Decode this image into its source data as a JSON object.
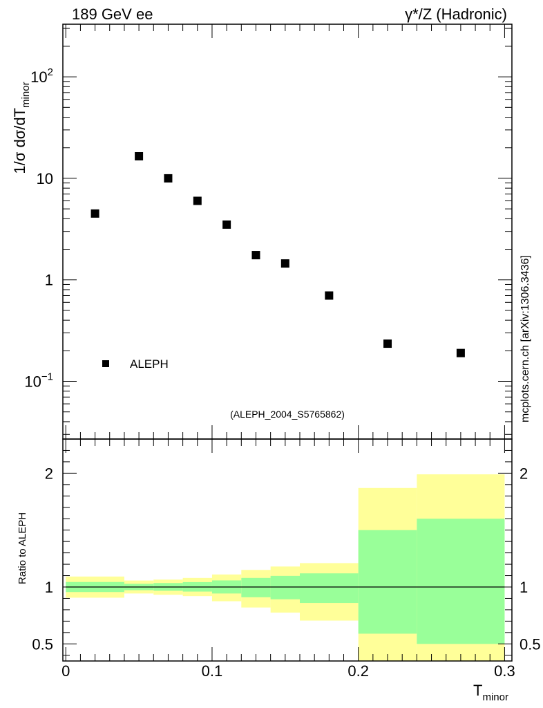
{
  "header": {
    "left": "189 GeV ee",
    "right": "γ*/Z (Hadronic)"
  },
  "side_label": "mcplots.cern.ch [arXiv:1306.3436]",
  "analysis_tag": "(ALEPH_2004_S5765862)",
  "colors": {
    "band_outer": "#ffff99",
    "band_inner": "#99ff99",
    "marker": "#000000",
    "tag_text": "#999999"
  },
  "chart_data": [
    {
      "type": "scatter",
      "ylabel_main": "1/σ  dσ/dT",
      "ylabel_sub": "minor",
      "yscale": "log",
      "ylim": [
        0.027,
        330
      ],
      "xlim": [
        -0.002,
        0.305
      ],
      "y_ticks": [
        {
          "v": 0.1,
          "base": "10",
          "exp": "−1"
        },
        {
          "v": 1,
          "base": "1",
          "exp": ""
        },
        {
          "v": 10,
          "base": "10",
          "exp": ""
        },
        {
          "v": 100,
          "base": "10",
          "exp": "2"
        }
      ],
      "legend": {
        "label": "ALEPH",
        "position": "bottom-left"
      },
      "series": [
        {
          "name": "ALEPH",
          "x": [
            0.02,
            0.05,
            0.07,
            0.09,
            0.11,
            0.13,
            0.15,
            0.18,
            0.22,
            0.27
          ],
          "y": [
            4.5,
            16.5,
            10.0,
            6.0,
            3.5,
            1.75,
            1.45,
            0.7,
            0.235,
            0.19
          ]
        }
      ]
    },
    {
      "type": "area",
      "ylabel": "Ratio to ALEPH",
      "xlabel_main": "T",
      "xlabel_sub": "minor",
      "ylim": [
        0.35,
        2.3
      ],
      "xlim": [
        -0.002,
        0.305
      ],
      "y_ticks": [
        0.5,
        1,
        2
      ],
      "y_tick_labels": [
        "0.5",
        "1",
        "2"
      ],
      "x_ticks": [
        0,
        0.1,
        0.2,
        0.3
      ],
      "x_tick_labels": [
        "0",
        "0.1",
        "0.2",
        "0.3"
      ],
      "reference_line": 1,
      "bins": [
        {
          "lo": 0.0,
          "hi": 0.04,
          "outer": [
            0.906,
            1.092
          ],
          "inner": [
            0.956,
            1.044
          ]
        },
        {
          "lo": 0.04,
          "hi": 0.06,
          "outer": [
            0.943,
            1.057
          ],
          "inner": [
            0.972,
            1.028
          ]
        },
        {
          "lo": 0.06,
          "hi": 0.08,
          "outer": [
            0.932,
            1.065
          ],
          "inner": [
            0.967,
            1.035
          ]
        },
        {
          "lo": 0.08,
          "hi": 0.1,
          "outer": [
            0.92,
            1.08
          ],
          "inner": [
            0.96,
            1.043
          ]
        },
        {
          "lo": 0.1,
          "hi": 0.12,
          "outer": [
            0.875,
            1.11
          ],
          "inner": [
            0.943,
            1.058
          ]
        },
        {
          "lo": 0.12,
          "hi": 0.14,
          "outer": [
            0.82,
            1.15
          ],
          "inner": [
            0.91,
            1.08
          ]
        },
        {
          "lo": 0.14,
          "hi": 0.16,
          "outer": [
            0.775,
            1.18
          ],
          "inner": [
            0.892,
            1.098
          ]
        },
        {
          "lo": 0.16,
          "hi": 0.2,
          "outer": [
            0.705,
            1.21
          ],
          "inner": [
            0.86,
            1.12
          ]
        },
        {
          "lo": 0.2,
          "hi": 0.24,
          "outer": [
            0.35,
            1.87
          ],
          "inner": [
            0.59,
            1.5
          ]
        },
        {
          "lo": 0.24,
          "hi": 0.3,
          "outer": [
            0.35,
            1.99
          ],
          "inner": [
            0.5,
            1.6
          ]
        }
      ]
    }
  ]
}
